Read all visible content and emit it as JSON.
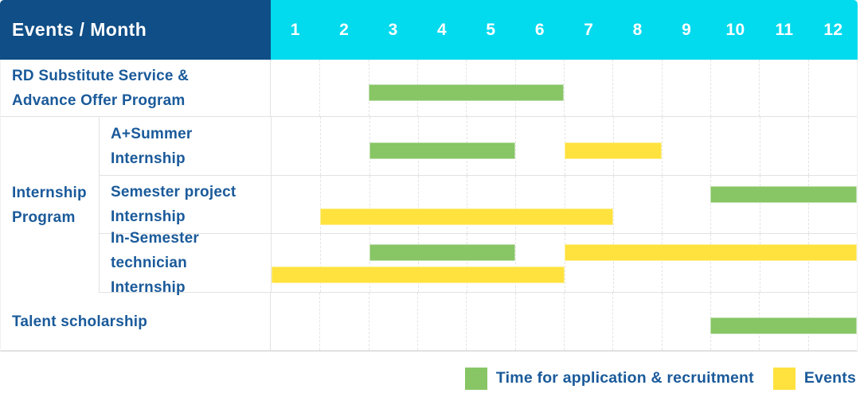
{
  "header": {
    "label": "Events / Month",
    "months": [
      "1",
      "2",
      "3",
      "4",
      "5",
      "6",
      "7",
      "8",
      "9",
      "10",
      "11",
      "12"
    ]
  },
  "colors": {
    "header_bg": "#0F4E86",
    "months_bg": "#02DAEE",
    "label_text": "#1A5A9A",
    "green": "#87C565",
    "yellow": "#FFE23D"
  },
  "rows": [
    {
      "type": "simple",
      "label_lines": [
        "RD Substitute Service &",
        "Advance Offer Program"
      ],
      "height": 72,
      "bars": [
        {
          "color": "green",
          "start": 3,
          "end": 6,
          "level": "single"
        }
      ]
    },
    {
      "type": "group",
      "label_lines": [
        "Internship",
        "Program"
      ],
      "subrows": [
        {
          "label_lines": [
            "A+Summer",
            "Internship"
          ],
          "height": 74,
          "bars": [
            {
              "color": "green",
              "start": 3,
              "end": 5,
              "level": "single"
            },
            {
              "color": "yellow",
              "start": 7,
              "end": 8,
              "level": "single"
            }
          ]
        },
        {
          "label_lines": [
            "Semester project",
            "Internship"
          ],
          "height": 73,
          "bars": [
            {
              "color": "green",
              "start": 10,
              "end": 12,
              "level": "top"
            },
            {
              "color": "yellow",
              "start": 2,
              "end": 7,
              "level": "bottom"
            }
          ]
        },
        {
          "label_lines": [
            "In-Semester",
            "technician Internship"
          ],
          "height": 74,
          "bars": [
            {
              "color": "green",
              "start": 3,
              "end": 5,
              "level": "top"
            },
            {
              "color": "yellow",
              "start": 7,
              "end": 12,
              "level": "top"
            },
            {
              "color": "yellow",
              "start": 1,
              "end": 6,
              "level": "bottom"
            }
          ]
        }
      ]
    },
    {
      "type": "simple",
      "label_lines": [
        "Talent scholarship"
      ],
      "height": 73,
      "bars": [
        {
          "color": "green",
          "start": 10,
          "end": 12,
          "level": "single"
        }
      ]
    }
  ],
  "legend": [
    {
      "color": "green",
      "label": "Time for application & recruitment"
    },
    {
      "color": "yellow",
      "label": "Events"
    }
  ],
  "chart_data": {
    "type": "gantt",
    "title": "Events / Month",
    "x_axis": {
      "label": "Month",
      "ticks": [
        1,
        2,
        3,
        4,
        5,
        6,
        7,
        8,
        9,
        10,
        11,
        12
      ],
      "range": [
        1,
        12
      ]
    },
    "legend": {
      "position": "bottom-right",
      "green": "Time for application & recruitment",
      "yellow": "Events"
    },
    "tasks": [
      {
        "name": "RD Substitute Service & Advance Offer Program",
        "group": null,
        "spans": [
          {
            "kind": "Time for application & recruitment",
            "color": "green",
            "from_month": 3,
            "to_month": 6
          }
        ]
      },
      {
        "name": "A+Summer Internship",
        "group": "Internship Program",
        "spans": [
          {
            "kind": "Time for application & recruitment",
            "color": "green",
            "from_month": 3,
            "to_month": 5
          },
          {
            "kind": "Events",
            "color": "yellow",
            "from_month": 7,
            "to_month": 8
          }
        ]
      },
      {
        "name": "Semester project Internship",
        "group": "Internship Program",
        "spans": [
          {
            "kind": "Time for application & recruitment",
            "color": "green",
            "from_month": 10,
            "to_month": 12
          },
          {
            "kind": "Events",
            "color": "yellow",
            "from_month": 2,
            "to_month": 7
          }
        ]
      },
      {
        "name": "In-Semester technician Internship",
        "group": "Internship Program",
        "spans": [
          {
            "kind": "Time for application & recruitment",
            "color": "green",
            "from_month": 3,
            "to_month": 5
          },
          {
            "kind": "Events",
            "color": "yellow",
            "from_month": 7,
            "to_month": 12
          },
          {
            "kind": "Events",
            "color": "yellow",
            "from_month": 1,
            "to_month": 6
          }
        ]
      },
      {
        "name": "Talent scholarship",
        "group": null,
        "spans": [
          {
            "kind": "Time for application & recruitment",
            "color": "green",
            "from_month": 10,
            "to_month": 12
          }
        ]
      }
    ]
  }
}
